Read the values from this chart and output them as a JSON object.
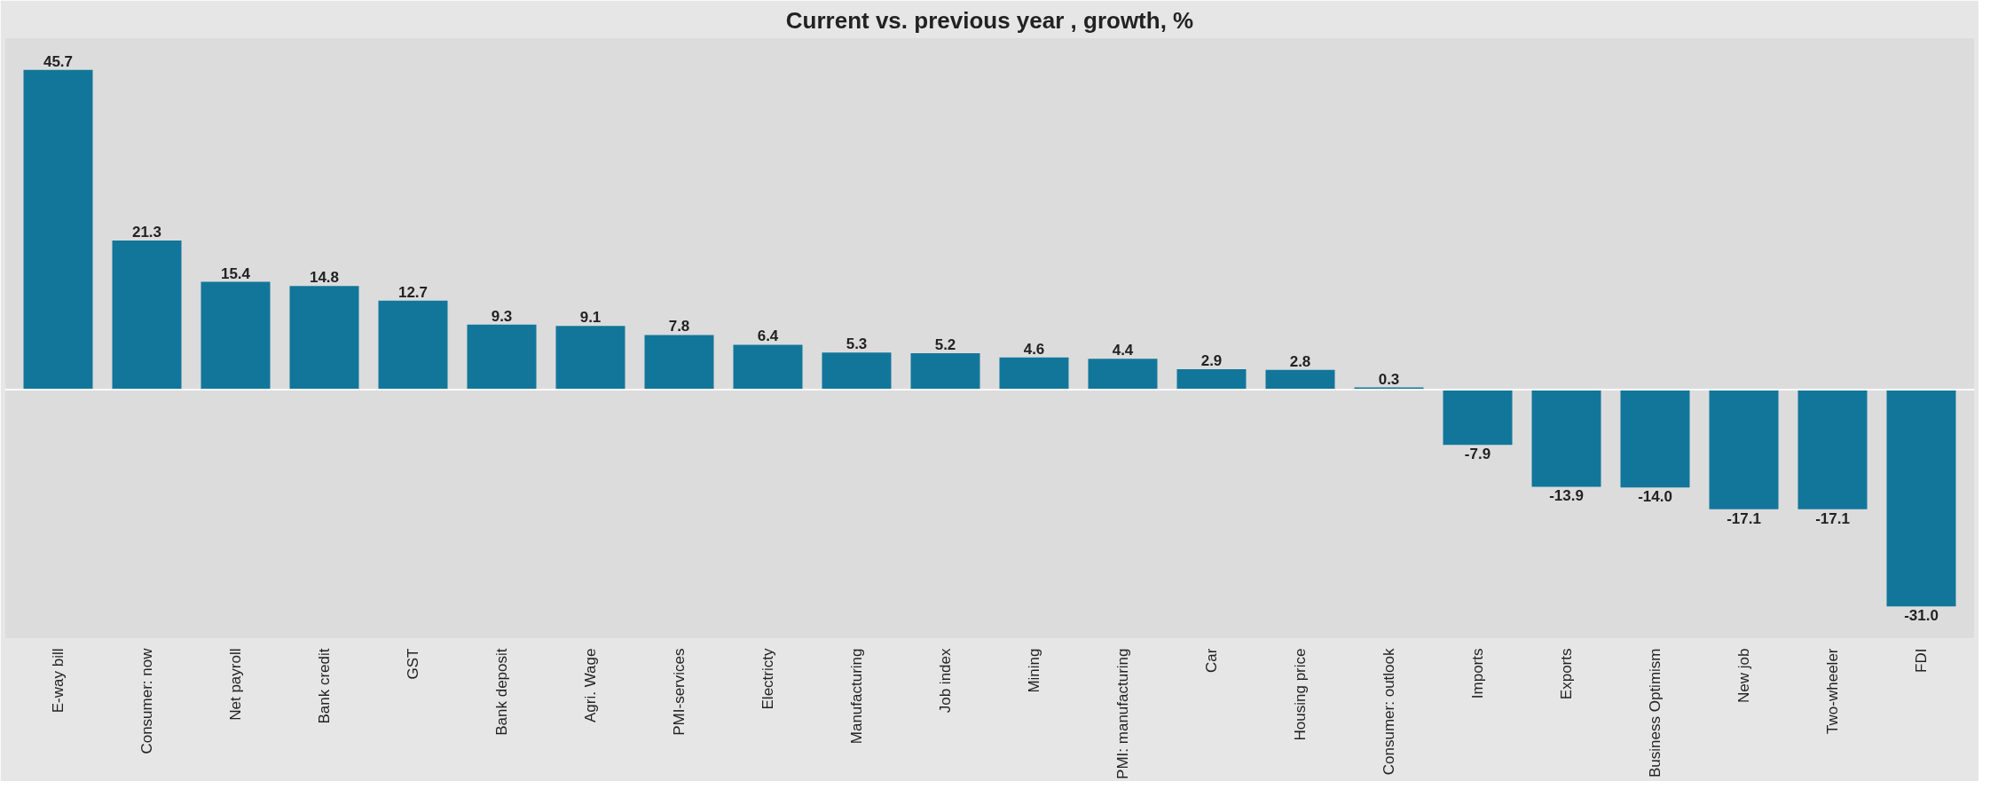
{
  "chart_data": {
    "type": "bar",
    "title": "Current vs. previous year , growth, %",
    "categories": [
      "E-way bill",
      "Consumer: now",
      "Net payroll",
      "Bank credit",
      "GST",
      "Bank deposit",
      "Agri. Wage",
      "PMI-services",
      "Electricty",
      "Manufacturing",
      "Job index",
      "Mining",
      "PMI: manufacturing",
      "Car",
      "Housing price",
      "Consumer: outlook",
      "Imports",
      "Exports",
      "Business Optimism",
      "New job",
      "Two-wheeler",
      "FDI"
    ],
    "values": [
      45.7,
      21.3,
      15.4,
      14.8,
      12.7,
      9.3,
      9.1,
      7.8,
      6.4,
      5.3,
      5.2,
      4.6,
      4.4,
      2.9,
      2.8,
      0.3,
      -7.9,
      -13.9,
      -14.0,
      -17.1,
      -17.1,
      -31.0
    ],
    "value_labels": [
      "45.7",
      "21.3",
      "15.4",
      "14.8",
      "12.7",
      "9.3",
      "9.1",
      "7.8",
      "6.4",
      "5.3",
      "5.2",
      "4.6",
      "4.4",
      "2.9",
      "2.8",
      "0.3",
      "-7.9",
      "-13.9",
      "-14.0",
      "-17.1",
      "-17.1",
      "-31.0"
    ],
    "color": "#12769a"
  }
}
